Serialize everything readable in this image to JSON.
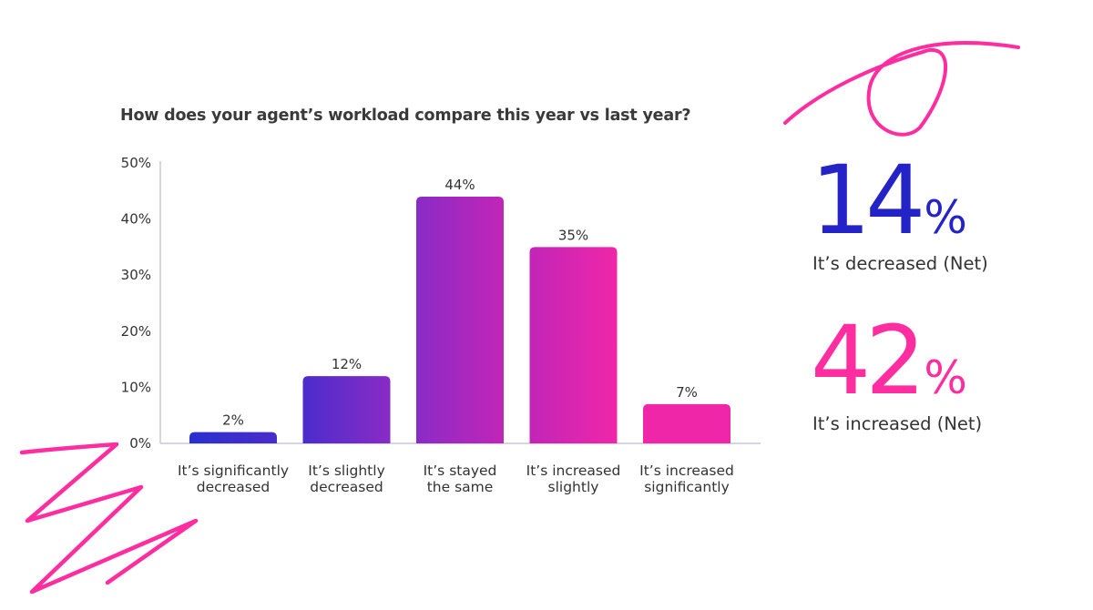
{
  "chart_data": {
    "type": "bar",
    "title": "How does your agent’s workload compare this year vs last year?",
    "categories": [
      [
        "It’s significantly",
        "decreased"
      ],
      [
        "It’s slightly",
        "decreased"
      ],
      [
        "It’s stayed",
        "the same"
      ],
      [
        "It’s increased",
        "slightly"
      ],
      [
        "It’s increased",
        "significantly"
      ]
    ],
    "values": [
      2,
      12,
      44,
      35,
      7
    ],
    "value_labels": [
      "2%",
      "12%",
      "44%",
      "35%",
      "7%"
    ],
    "y_ticks": [
      0,
      10,
      20,
      30,
      40,
      50
    ],
    "y_tick_labels": [
      "0%",
      "10%",
      "20%",
      "30%",
      "40%",
      "50%"
    ],
    "ylim": [
      0,
      50
    ],
    "xlabel": "",
    "ylabel": "",
    "grid": false,
    "colors": [
      "#2a2fd0",
      "#4b2ccc",
      "#8a2bc6",
      "#c225b8",
      "#f026a8"
    ]
  },
  "stats": [
    {
      "value": "14",
      "unit": "%",
      "label": "It’s decreased (Net)",
      "color": "#2323c8"
    },
    {
      "value": "42",
      "unit": "%",
      "label": "It’s increased (Net)",
      "color": "#ff2d9f"
    }
  ],
  "decoration_color": "#ff2d9f"
}
